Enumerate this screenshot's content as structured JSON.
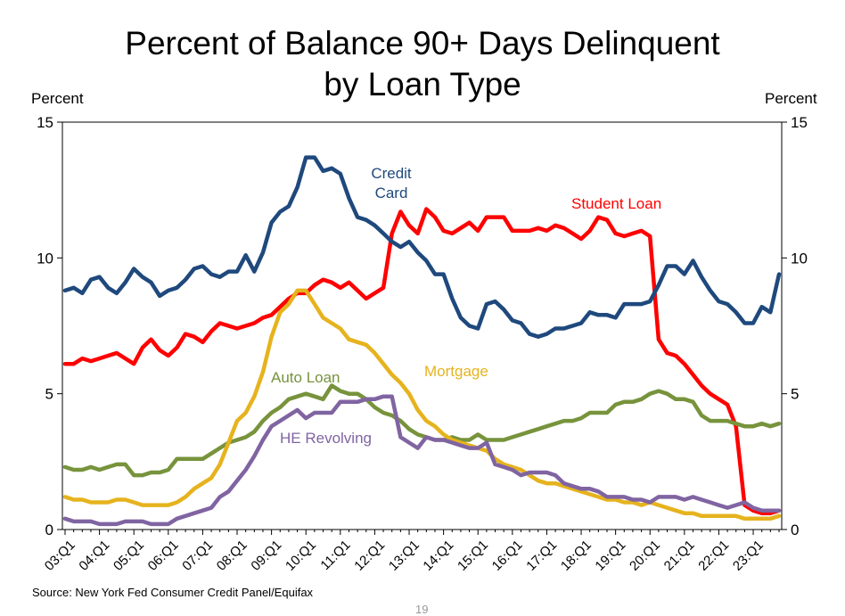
{
  "title_line1": "Percent of Balance 90+ Days Delinquent",
  "title_line2": "by Loan Type",
  "y_unit_left": "Percent",
  "y_unit_right": "Percent",
  "source": "Source: New York Fed Consumer Credit Panel/Equifax",
  "page_number": "19",
  "chart_data": {
    "type": "line",
    "title": "Percent of Balance 90+ Days Delinquent by Loan Type",
    "ylabel": "Percent",
    "ylim": [
      0,
      15
    ],
    "yticks": [
      0,
      5,
      10,
      15
    ],
    "x_start": "2003Q1",
    "x_end": "2023Q4",
    "x_tick_labels": [
      "03:Q1",
      "04:Q1",
      "05:Q1",
      "06:Q1",
      "07:Q1",
      "08:Q1",
      "09:Q1",
      "10:Q1",
      "11:Q1",
      "12:Q1",
      "13:Q1",
      "14:Q1",
      "15:Q1",
      "16:Q1",
      "17:Q1",
      "18:Q1",
      "19:Q1",
      "20:Q1",
      "21:Q1",
      "22:Q1",
      "23:Q1"
    ],
    "grid": false,
    "legend": "inline labels",
    "series": [
      {
        "name": "Credit Card",
        "color": "#1f497d",
        "label_lines": [
          "Credit",
          "Card"
        ],
        "values": [
          8.8,
          8.9,
          8.7,
          9.2,
          9.3,
          8.9,
          8.7,
          9.1,
          9.6,
          9.3,
          9.1,
          8.6,
          8.8,
          8.9,
          9.2,
          9.6,
          9.7,
          9.4,
          9.3,
          9.5,
          9.5,
          10.1,
          9.5,
          10.2,
          11.3,
          11.7,
          11.9,
          12.6,
          13.7,
          13.7,
          13.2,
          13.3,
          13.1,
          12.2,
          11.5,
          11.4,
          11.2,
          10.9,
          10.6,
          10.4,
          10.6,
          10.2,
          9.9,
          9.4,
          9.4,
          8.5,
          7.8,
          7.5,
          7.4,
          8.3,
          8.4,
          8.1,
          7.7,
          7.6,
          7.2,
          7.1,
          7.2,
          7.4,
          7.4,
          7.5,
          7.6,
          8.0,
          7.9,
          7.9,
          7.8,
          8.3,
          8.3,
          8.3,
          8.4,
          9.0,
          9.7,
          9.7,
          9.4,
          9.9,
          9.3,
          8.8,
          8.4,
          8.3,
          8.0,
          7.6,
          7.6,
          8.2,
          8.0,
          9.4
        ]
      },
      {
        "name": "Student Loan",
        "color": "#ff0000",
        "label_lines": [
          "Student Loan"
        ],
        "values": [
          6.1,
          6.1,
          6.3,
          6.2,
          6.3,
          6.4,
          6.5,
          6.3,
          6.1,
          6.7,
          7.0,
          6.6,
          6.4,
          6.7,
          7.2,
          7.1,
          6.9,
          7.3,
          7.6,
          7.5,
          7.4,
          7.5,
          7.6,
          7.8,
          7.9,
          8.2,
          8.5,
          8.7,
          8.7,
          9.0,
          9.2,
          9.1,
          8.9,
          9.1,
          8.8,
          8.5,
          8.7,
          8.9,
          10.9,
          11.7,
          11.2,
          10.9,
          11.8,
          11.5,
          11.0,
          10.9,
          11.1,
          11.3,
          11.0,
          11.5,
          11.5,
          11.5,
          11.0,
          11.0,
          11.0,
          11.1,
          11.0,
          11.2,
          11.1,
          10.9,
          10.7,
          11.0,
          11.5,
          11.4,
          10.9,
          10.8,
          10.9,
          11.0,
          10.8,
          7.0,
          6.5,
          6.4,
          6.1,
          5.7,
          5.3,
          5.0,
          4.8,
          4.6,
          3.8,
          0.9,
          0.7,
          0.6,
          0.6,
          0.7
        ]
      },
      {
        "name": "Mortgage",
        "color": "#e6b31e",
        "label_lines": [
          "Mortgage"
        ],
        "values": [
          1.2,
          1.1,
          1.1,
          1.0,
          1.0,
          1.0,
          1.1,
          1.1,
          1.0,
          0.9,
          0.9,
          0.9,
          0.9,
          1.0,
          1.2,
          1.5,
          1.7,
          1.9,
          2.4,
          3.2,
          4.0,
          4.3,
          4.9,
          5.8,
          7.1,
          8.0,
          8.3,
          8.8,
          8.8,
          8.3,
          7.8,
          7.6,
          7.4,
          7.0,
          6.9,
          6.8,
          6.5,
          6.1,
          5.7,
          5.4,
          5.0,
          4.4,
          4.0,
          3.8,
          3.5,
          3.3,
          3.2,
          3.1,
          3.0,
          2.9,
          2.6,
          2.4,
          2.3,
          2.2,
          2.0,
          1.8,
          1.7,
          1.7,
          1.6,
          1.5,
          1.4,
          1.3,
          1.2,
          1.1,
          1.1,
          1.0,
          1.0,
          0.9,
          1.0,
          0.9,
          0.8,
          0.7,
          0.6,
          0.6,
          0.5,
          0.5,
          0.5,
          0.5,
          0.5,
          0.4,
          0.4,
          0.4,
          0.4,
          0.5
        ]
      },
      {
        "name": "Auto Loan",
        "color": "#77933c",
        "label_lines": [
          "Auto Loan"
        ],
        "values": [
          2.3,
          2.2,
          2.2,
          2.3,
          2.2,
          2.3,
          2.4,
          2.4,
          2.0,
          2.0,
          2.1,
          2.1,
          2.2,
          2.6,
          2.6,
          2.6,
          2.6,
          2.8,
          3.0,
          3.2,
          3.3,
          3.4,
          3.6,
          4.0,
          4.3,
          4.5,
          4.8,
          4.9,
          5.0,
          4.9,
          4.8,
          5.3,
          5.1,
          5.0,
          5.0,
          4.8,
          4.5,
          4.3,
          4.2,
          4.0,
          3.7,
          3.5,
          3.4,
          3.3,
          3.3,
          3.4,
          3.3,
          3.3,
          3.5,
          3.3,
          3.3,
          3.3,
          3.4,
          3.5,
          3.6,
          3.7,
          3.8,
          3.9,
          4.0,
          4.0,
          4.1,
          4.3,
          4.3,
          4.3,
          4.6,
          4.7,
          4.7,
          4.8,
          5.0,
          5.1,
          5.0,
          4.8,
          4.8,
          4.7,
          4.2,
          4.0,
          4.0,
          4.0,
          3.9,
          3.8,
          3.8,
          3.9,
          3.8,
          3.9
        ]
      },
      {
        "name": "HE Revolving",
        "color": "#8064a2",
        "label_lines": [
          "HE Revolving"
        ],
        "values": [
          0.4,
          0.3,
          0.3,
          0.3,
          0.2,
          0.2,
          0.2,
          0.3,
          0.3,
          0.3,
          0.2,
          0.2,
          0.2,
          0.4,
          0.5,
          0.6,
          0.7,
          0.8,
          1.2,
          1.4,
          1.8,
          2.2,
          2.7,
          3.3,
          3.8,
          4.0,
          4.2,
          4.4,
          4.1,
          4.3,
          4.3,
          4.3,
          4.7,
          4.7,
          4.7,
          4.8,
          4.8,
          4.9,
          4.9,
          3.4,
          3.2,
          3.0,
          3.4,
          3.3,
          3.3,
          3.2,
          3.1,
          3.0,
          3.0,
          3.2,
          2.4,
          2.3,
          2.2,
          2.0,
          2.1,
          2.1,
          2.1,
          2.0,
          1.7,
          1.6,
          1.5,
          1.5,
          1.4,
          1.2,
          1.2,
          1.2,
          1.1,
          1.1,
          1.0,
          1.2,
          1.2,
          1.2,
          1.1,
          1.2,
          1.1,
          1.0,
          0.9,
          0.8,
          0.9,
          1.0,
          0.8,
          0.7,
          0.7,
          0.7
        ]
      }
    ]
  }
}
